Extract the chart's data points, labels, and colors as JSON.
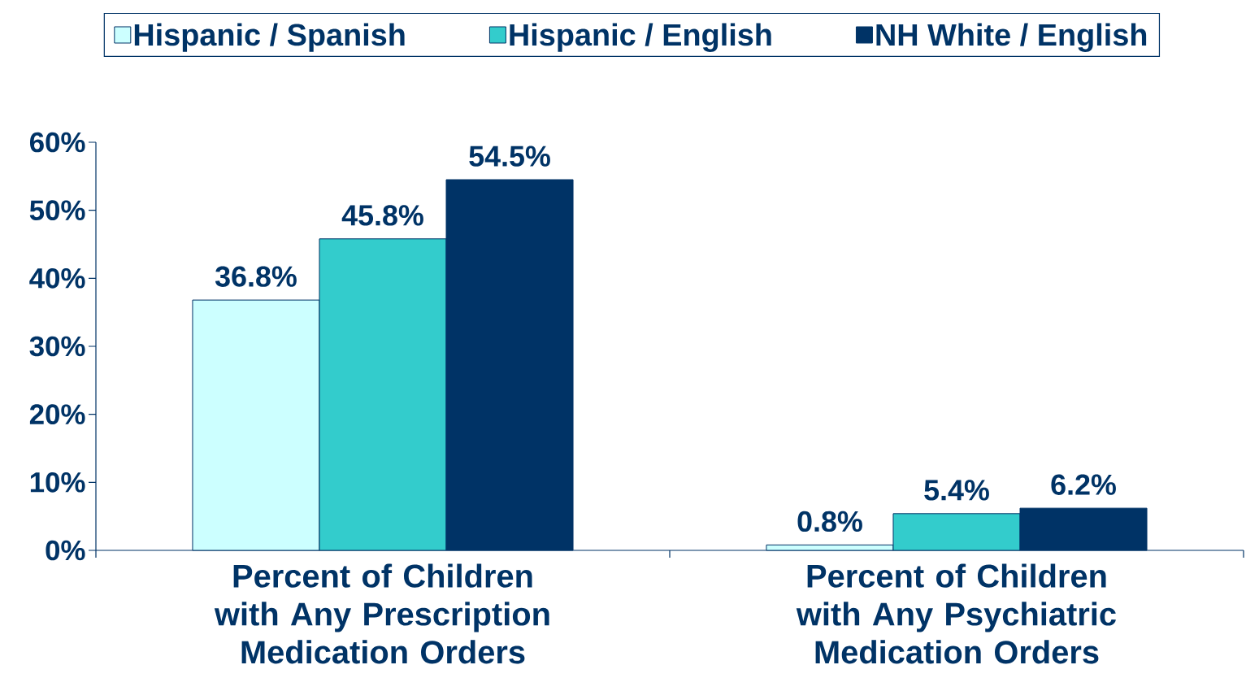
{
  "chart_data": {
    "type": "bar",
    "categories": [
      "Percent of Children with Any Prescription Medication Orders",
      "Percent of Children with Any Psychiatric Medication Orders"
    ],
    "series": [
      {
        "name": "Hispanic / Spanish",
        "color": "#ccffff",
        "values": [
          36.8,
          0.8
        ],
        "value_labels": [
          "36.8%",
          "0.8%"
        ]
      },
      {
        "name": "Hispanic / English",
        "color": "#33cccc",
        "values": [
          45.8,
          5.4
        ],
        "value_labels": [
          "45.8%",
          "5.4%"
        ]
      },
      {
        "name": "NH White / English",
        "color": "#003366",
        "values": [
          54.5,
          6.2
        ],
        "value_labels": [
          "54.5%",
          "6.2%"
        ]
      }
    ],
    "ylim": [
      0,
      60
    ],
    "yticks": [
      {
        "value": 0,
        "label": "0%"
      },
      {
        "value": 10,
        "label": "10%"
      },
      {
        "value": 20,
        "label": "20%"
      },
      {
        "value": 30,
        "label": "30%"
      },
      {
        "value": 40,
        "label": "40%"
      },
      {
        "value": 50,
        "label": "50%"
      },
      {
        "value": 60,
        "label": "60%"
      }
    ],
    "legend": "top",
    "grid": false
  }
}
